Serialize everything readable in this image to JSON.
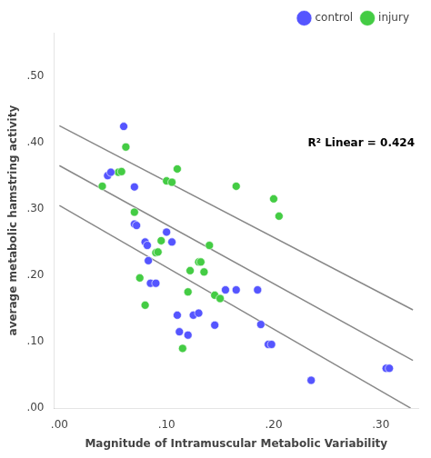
{
  "chart_data": {
    "type": "scatter",
    "xlabel": "Magnitude of Intramuscular Metabolic Variability",
    "ylabel": "average metabolic hamstring activity",
    "xlim": [
      -0.005,
      0.335
    ],
    "ylim": [
      0.0,
      0.565
    ],
    "xticks": [
      {
        "value": 0.0,
        "label": ".00"
      },
      {
        "value": 0.1,
        "label": ".10"
      },
      {
        "value": 0.2,
        "label": ".20"
      },
      {
        "value": 0.3,
        "label": ".30"
      }
    ],
    "yticks": [
      {
        "value": 0.0,
        "label": ".00"
      },
      {
        "value": 0.1,
        "label": ".10"
      },
      {
        "value": 0.2,
        "label": ".20"
      },
      {
        "value": 0.3,
        "label": ".30"
      },
      {
        "value": 0.4,
        "label": ".40"
      },
      {
        "value": 0.5,
        "label": ".50"
      }
    ],
    "grid": false,
    "legend": "upper right",
    "annotations": [
      "R² Linear = 0.424"
    ],
    "series": [
      {
        "name": "control",
        "type": "scatter",
        "marker": "circle",
        "color": "#5555ff",
        "x": [
          0.045,
          0.048,
          0.06,
          0.07,
          0.07,
          0.072,
          0.08,
          0.082,
          0.083,
          0.085,
          0.09,
          0.1,
          0.105,
          0.11,
          0.112,
          0.12,
          0.125,
          0.13,
          0.145,
          0.155,
          0.165,
          0.185,
          0.188,
          0.195,
          0.198,
          0.235,
          0.305,
          0.308
        ],
        "values": [
          0.35,
          0.355,
          0.424,
          0.333,
          0.277,
          0.275,
          0.25,
          0.245,
          0.222,
          0.188,
          0.188,
          0.265,
          0.25,
          0.14,
          0.115,
          0.11,
          0.14,
          0.143,
          0.125,
          0.178,
          0.178,
          0.178,
          0.126,
          0.096,
          0.096,
          0.042,
          0.06,
          0.06
        ]
      },
      {
        "name": "injury",
        "type": "scatter",
        "marker": "circle",
        "color": "#44cc44",
        "x": [
          0.04,
          0.055,
          0.058,
          0.062,
          0.07,
          0.075,
          0.08,
          0.09,
          0.092,
          0.095,
          0.1,
          0.105,
          0.11,
          0.115,
          0.12,
          0.122,
          0.13,
          0.132,
          0.135,
          0.14,
          0.145,
          0.15,
          0.165,
          0.2,
          0.205
        ],
        "values": [
          0.334,
          0.355,
          0.356,
          0.393,
          0.295,
          0.196,
          0.155,
          0.234,
          0.235,
          0.252,
          0.342,
          0.34,
          0.36,
          0.09,
          0.175,
          0.207,
          0.22,
          0.22,
          0.205,
          0.245,
          0.17,
          0.165,
          0.334,
          0.315,
          0.289
        ]
      },
      {
        "type": "line",
        "line_style": "solid",
        "color": "#888888",
        "x": [
          0.0,
          0.33
        ],
        "values": [
          0.365,
          0.072
        ]
      },
      {
        "type": "line",
        "line_style": "solid",
        "color": "#888888",
        "x": [
          0.0,
          0.33
        ],
        "values": [
          0.425,
          0.148
        ]
      },
      {
        "type": "line",
        "line_style": "solid",
        "color": "#888888",
        "x": [
          0.0,
          0.32785016286645
        ],
        "values": [
          0.305,
          0.0
        ]
      }
    ]
  }
}
